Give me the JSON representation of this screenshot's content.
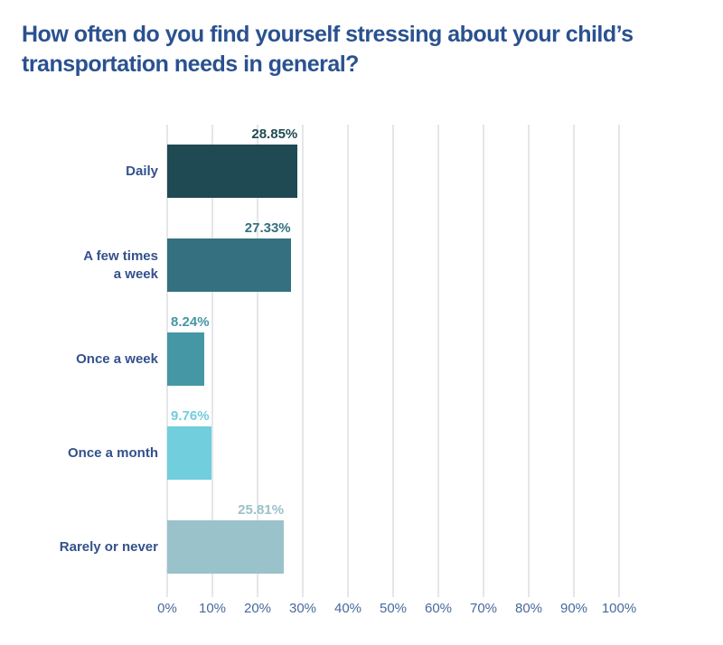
{
  "chart_data": {
    "type": "bar",
    "orientation": "horizontal",
    "title": "How often do you find yourself stressing about your child’s\ntransportation needs in general?",
    "categories": [
      "Daily",
      "A few times\na week",
      "Once a week",
      "Once a month",
      "Rarely or never"
    ],
    "values": [
      28.85,
      27.33,
      8.24,
      9.76,
      25.81
    ],
    "value_labels": [
      "28.85%",
      "27.33%",
      "8.24%",
      "9.76%",
      "25.81%"
    ],
    "bar_colors": [
      "#1f4a53",
      "#34707f",
      "#4597a5",
      "#70cedd",
      "#9ac2ca"
    ],
    "xlabel": "",
    "ylabel": "",
    "xlim": [
      0,
      100
    ],
    "x_ticks": [
      "0%",
      "10%",
      "20%",
      "30%",
      "40%",
      "50%",
      "60%",
      "70%",
      "80%",
      "90%",
      "100%"
    ],
    "grid": true,
    "legend": "none",
    "colors": {
      "title": "#2a5190",
      "category_label": "#33518c",
      "axis_label": "#47699c",
      "gridline": "#e4e6e9",
      "background": "#ffffff"
    }
  }
}
